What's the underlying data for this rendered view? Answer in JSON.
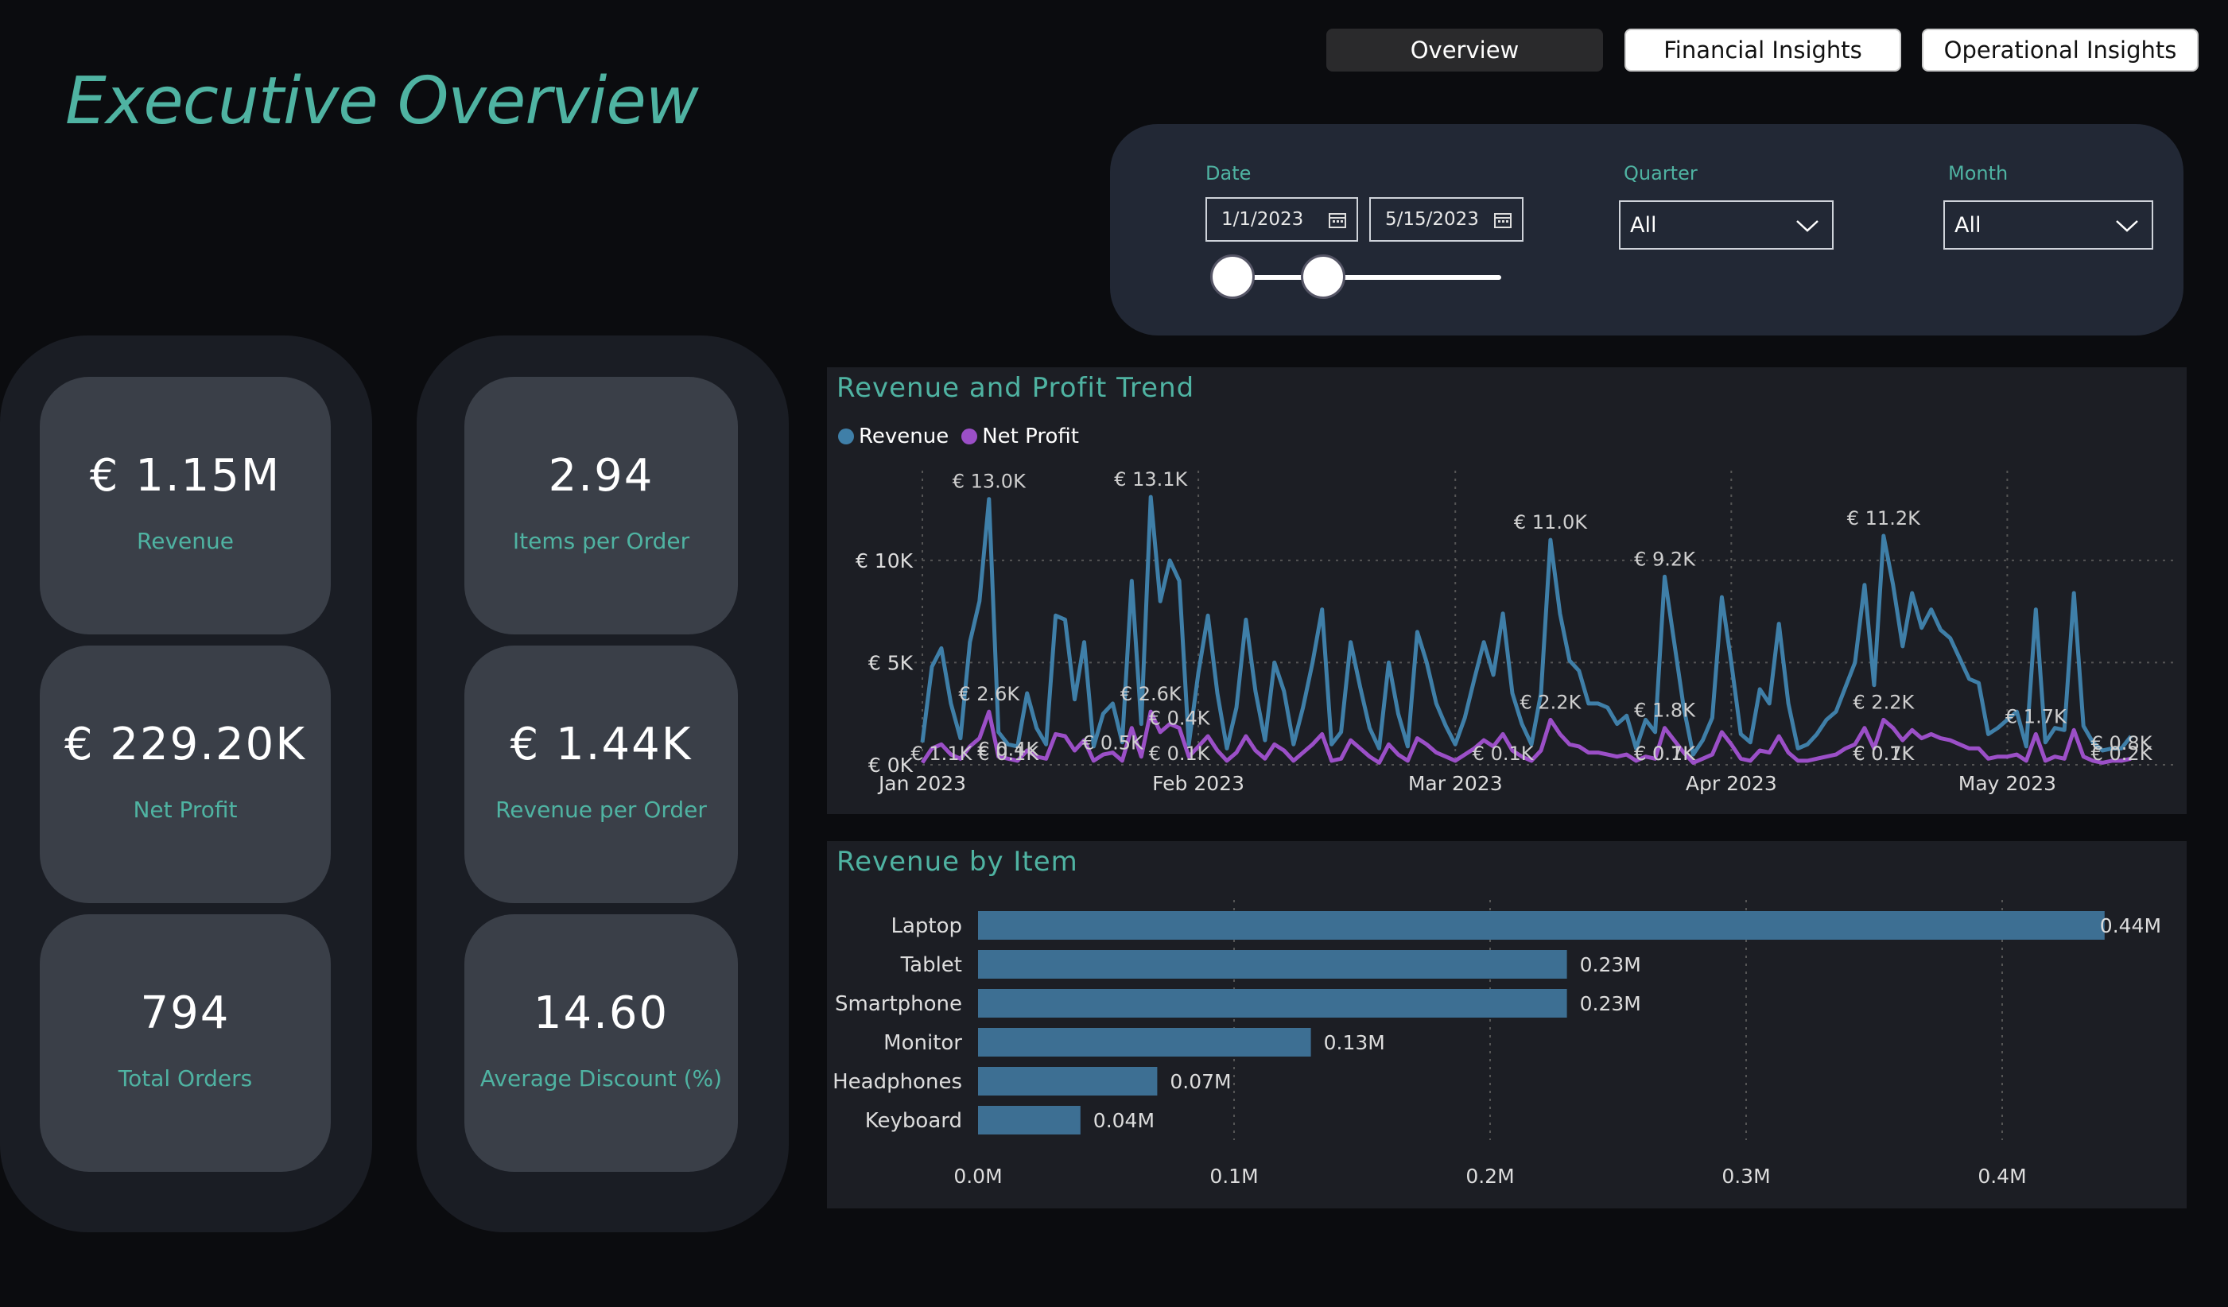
{
  "page": {
    "title": "Executive Overview"
  },
  "nav": {
    "tabs": [
      {
        "label": "Overview",
        "active": true
      },
      {
        "label": "Financial Insights",
        "active": false
      },
      {
        "label": "Operational Insights",
        "active": false
      }
    ]
  },
  "filters": {
    "date": {
      "label": "Date",
      "start": "1/1/2023",
      "end": "5/15/2023",
      "icon": "calendar-icon"
    },
    "quarter": {
      "label": "Quarter",
      "value": "All",
      "icon": "chevron-down-icon"
    },
    "month": {
      "label": "Month",
      "value": "All",
      "icon": "chevron-down-icon"
    }
  },
  "kpis": [
    {
      "value": "€ 1.15M",
      "label": "Revenue"
    },
    {
      "value": "€ 229.20K",
      "label": "Net Profit"
    },
    {
      "value": "794",
      "label": "Total Orders"
    },
    {
      "value": "2.94",
      "label": "Items per Order"
    },
    {
      "value": "€ 1.44K",
      "label": "Revenue per Order"
    },
    {
      "value": "14.60",
      "label": "Average Discount (%)"
    }
  ],
  "colors": {
    "accent": "#4fb3a2",
    "revenue": "#3f7fa8",
    "net_profit": "#9b4fc7",
    "bar": "#3d6f93"
  },
  "chart_data": [
    {
      "type": "line",
      "title": "Revenue and Profit Trend",
      "x_ticks": [
        "Jan 2023",
        "Feb 2023",
        "Mar 2023",
        "Apr 2023",
        "May 2023"
      ],
      "y_ticks": [
        "€ 0K",
        "€ 5K",
        "€ 10K"
      ],
      "ylim": [
        0,
        14000
      ],
      "grid": true,
      "legend_position": "top-left",
      "series": [
        {
          "name": "Revenue",
          "values": [
            1100,
            4800,
            5700,
            3000,
            1300,
            6000,
            8000,
            13000,
            1600,
            1000,
            900,
            3500,
            1800,
            1000,
            7300,
            7100,
            3200,
            6000,
            900,
            2500,
            3000,
            1100,
            9000,
            2000,
            13100,
            8000,
            10000,
            9000,
            1000,
            4500,
            7300,
            3500,
            800,
            2800,
            7100,
            3600,
            1200,
            5000,
            3600,
            1000,
            2800,
            5000,
            7600,
            1000,
            1600,
            6000,
            3800,
            1800,
            800,
            5000,
            2500,
            900,
            6500,
            5000,
            3000,
            1900,
            1000,
            2300,
            4200,
            6000,
            4400,
            7400,
            3500,
            2000,
            1000,
            3500,
            11000,
            7400,
            5100,
            4600,
            3000,
            3000,
            2800,
            2000,
            2400,
            800,
            2200,
            1600,
            9200,
            6000,
            2800,
            500,
            1200,
            2300,
            8200,
            5000,
            1500,
            1100,
            3700,
            3000,
            6900,
            3000,
            800,
            1000,
            1500,
            2200,
            2600,
            3800,
            5000,
            8800,
            3900,
            11200,
            8800,
            5800,
            8400,
            6700,
            7600,
            6600,
            6200,
            5200,
            4200,
            4000,
            1500,
            1800,
            2200,
            2600,
            900,
            7600,
            1100,
            1800,
            1700,
            8400,
            1900,
            1100,
            700,
            800,
            800,
            1400
          ]
        },
        {
          "name": "Net Profit",
          "values": [
            100,
            800,
            1000,
            500,
            300,
            900,
            1300,
            2600,
            400,
            300,
            200,
            700,
            400,
            300,
            1500,
            1400,
            700,
            1200,
            200,
            500,
            600,
            200,
            1800,
            400,
            2600,
            1600,
            2000,
            1800,
            400,
            900,
            1400,
            700,
            200,
            600,
            1400,
            700,
            300,
            1000,
            700,
            200,
            600,
            1000,
            1500,
            200,
            300,
            1200,
            800,
            400,
            100,
            1000,
            500,
            200,
            1300,
            1000,
            600,
            400,
            200,
            500,
            800,
            1200,
            900,
            1500,
            700,
            400,
            200,
            700,
            2200,
            1500,
            1000,
            900,
            600,
            600,
            500,
            400,
            500,
            200,
            400,
            300,
            1800,
            1200,
            600,
            100,
            300,
            500,
            1600,
            1000,
            300,
            200,
            700,
            600,
            1400,
            600,
            200,
            200,
            300,
            400,
            500,
            800,
            1000,
            1800,
            800,
            2200,
            1800,
            1200,
            1700,
            1300,
            1500,
            1300,
            1200,
            1000,
            800,
            800,
            300,
            400,
            400,
            500,
            200,
            1500,
            200,
            400,
            300,
            1700,
            400,
            200,
            100,
            200,
            200,
            300
          ]
        }
      ],
      "data_labels": [
        {
          "text": "€ 13.0K"
        },
        {
          "text": "€ 13.1K"
        },
        {
          "text": "€ 11.0K"
        },
        {
          "text": "€ 9.2K"
        },
        {
          "text": "€ 11.2K"
        },
        {
          "text": "€ 2.6K"
        },
        {
          "text": "€ 2.6K"
        },
        {
          "text": "€ 2.2K"
        },
        {
          "text": "€ 1.8K"
        },
        {
          "text": "€ 2.2K"
        },
        {
          "text": "€ 1.7K"
        },
        {
          "text": "€ 0.8K"
        },
        {
          "text": "€ 0.4K"
        },
        {
          "text": "€ 0.5K"
        },
        {
          "text": "€ 0.4K"
        },
        {
          "text": "€ 0.7K"
        },
        {
          "text": "€ 0.7K"
        },
        {
          "text": "€ 1.1K"
        },
        {
          "text": "€ 0.1K"
        },
        {
          "text": "€ 0.1K"
        },
        {
          "text": "€ 0.1K"
        },
        {
          "text": "€ 0.1K"
        },
        {
          "text": "€ 0.1K"
        },
        {
          "text": "€ 0.2K"
        }
      ]
    },
    {
      "type": "bar",
      "orientation": "horizontal",
      "title": "Revenue by Item",
      "categories": [
        "Laptop",
        "Tablet",
        "Smartphone",
        "Monitor",
        "Headphones",
        "Keyboard"
      ],
      "values": [
        0.44,
        0.23,
        0.23,
        0.13,
        0.07,
        0.04
      ],
      "value_labels": [
        "0.44M",
        "0.23M",
        "0.23M",
        "0.13M",
        "0.07M",
        "0.04M"
      ],
      "x_ticks": [
        "0.0M",
        "0.1M",
        "0.2M",
        "0.3M",
        "0.4M"
      ],
      "xlim": [
        0,
        0.46
      ],
      "grid": true
    }
  ]
}
